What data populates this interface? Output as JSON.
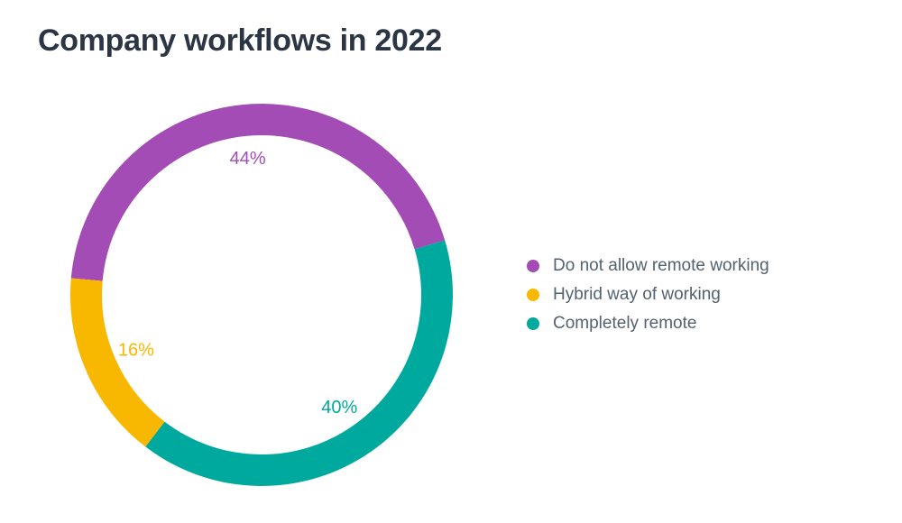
{
  "title": {
    "text": "Company workflows in 2022",
    "color": "#2b3543"
  },
  "chart_data": {
    "type": "pie",
    "variant": "donut",
    "title": "Company workflows in 2022",
    "unit": "%",
    "segments": [
      {
        "label": "Do not allow remote working",
        "value": 44,
        "display_label": "44%",
        "color": "#a34cb5"
      },
      {
        "label": "Hybrid way of working",
        "value": 16,
        "display_label": "16%",
        "color": "#f9b800"
      },
      {
        "label": "Completely remote",
        "value": 40,
        "display_label": "40%",
        "color": "#00a99d"
      }
    ],
    "slice_order_clockwise": [
      "Do not allow remote working",
      "Completely remote",
      "Hybrid way of working"
    ],
    "start_angle_deg": 175,
    "direction": "clockwise",
    "value_labels": "inside",
    "legend": {
      "position": "right",
      "text_color": "#546170"
    },
    "background": "#ffffff"
  }
}
